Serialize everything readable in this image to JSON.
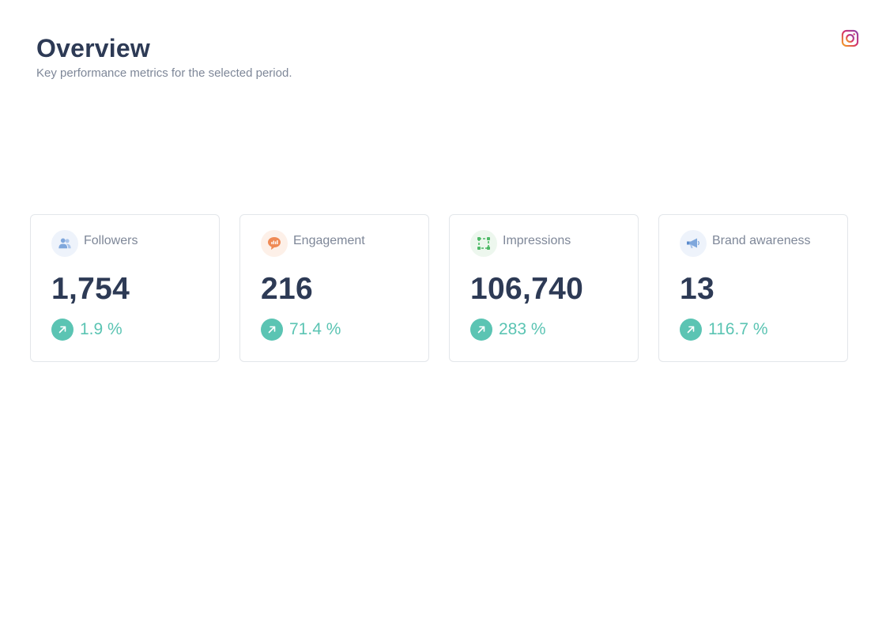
{
  "header": {
    "title": "Overview",
    "subtitle": "Key performance metrics for the selected period."
  },
  "brand": {
    "icon": "instagram-icon"
  },
  "colors": {
    "title": "#2d3a55",
    "muted": "#7e8798",
    "positive": "#5bc4b3",
    "card_border": "#e3e6ea"
  },
  "metrics": [
    {
      "label": "Followers",
      "value": "1,754",
      "change": "1.9 %",
      "icon": "users-icon",
      "trend": "up"
    },
    {
      "label": "Engagement",
      "value": "216",
      "change": "71.4 %",
      "icon": "chat-chart-icon",
      "trend": "up"
    },
    {
      "label": "Impressions",
      "value": "106,740",
      "change": "283 %",
      "icon": "frame-icon",
      "trend": "up"
    },
    {
      "label": "Brand awareness",
      "value": "13",
      "change": "116.7 %",
      "icon": "megaphone-icon",
      "trend": "up"
    }
  ]
}
